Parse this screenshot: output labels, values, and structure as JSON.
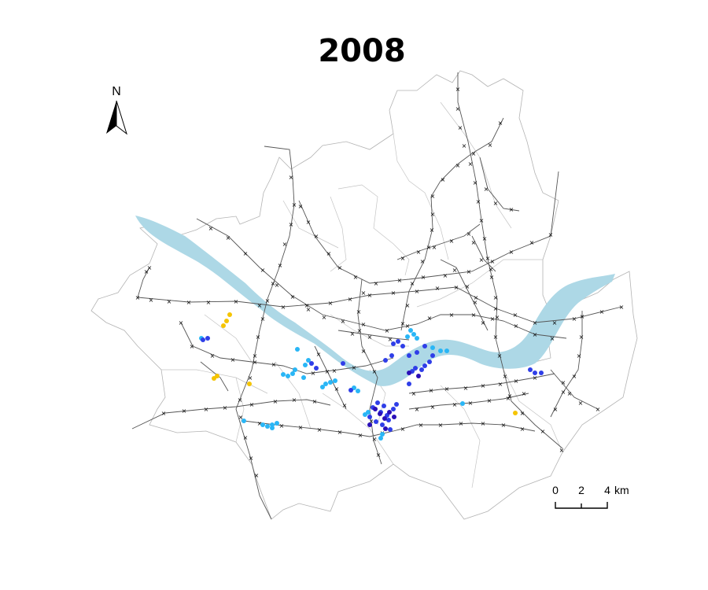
{
  "title": "2008",
  "north_arrow": {
    "label": "N"
  },
  "scale_bar": {
    "labels": [
      "0",
      "2",
      "4"
    ],
    "unit": "km"
  },
  "colors": {
    "river": "#add8e6",
    "district_border": "#b3b3b3",
    "rail_line": "#555555",
    "station_marker": "#000000",
    "category_1": "#f5c400",
    "category_2": "#29b6f6",
    "category_3": "#2f3ee8",
    "category_4": "#2a0fb8"
  }
}
